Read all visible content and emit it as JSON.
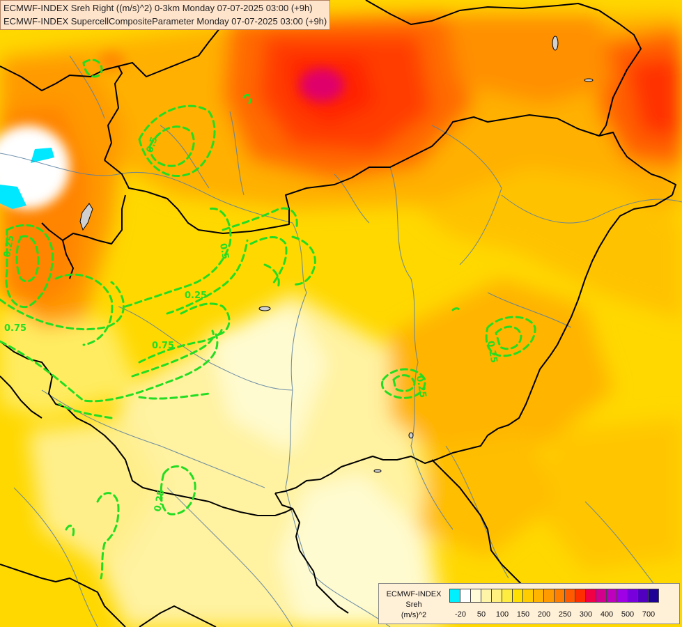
{
  "title": {
    "line1": "ECMWF-INDEX Sreh Right ((m/s)^2) 0-3km Monday 07-07-2025 03:00 (+9h)",
    "line2": "ECMWF-INDEX SupercellCompositeParameter Monday 07-07-2025 03:00 (+9h)"
  },
  "legend": {
    "line1": "ECMWF-INDEX",
    "line2": "Sreh",
    "line3": "(m/s)^2",
    "swatches": [
      "#00f0ff",
      "#ffffff",
      "#fffbd8",
      "#fff5a8",
      "#fff080",
      "#ffec40",
      "#ffe000",
      "#ffcc00",
      "#ffb400",
      "#ff9a00",
      "#ff7e00",
      "#ff5a00",
      "#ff2e00",
      "#f20046",
      "#d2008c",
      "#be00be",
      "#a000e6",
      "#7800dc",
      "#5000be",
      "#1e0096"
    ],
    "ticks": [
      "-20",
      "50",
      "100",
      "150",
      "200",
      "250",
      "300",
      "400",
      "500",
      "700"
    ]
  },
  "contour_labels": [
    "0.5",
    "0.5",
    "0.25",
    "0.25",
    "0.75",
    "0.75",
    "0.25",
    "0.25",
    "0.25"
  ],
  "colors": {
    "contour": "#22dd22",
    "border": "#000000",
    "river": "#5a7fa0"
  }
}
